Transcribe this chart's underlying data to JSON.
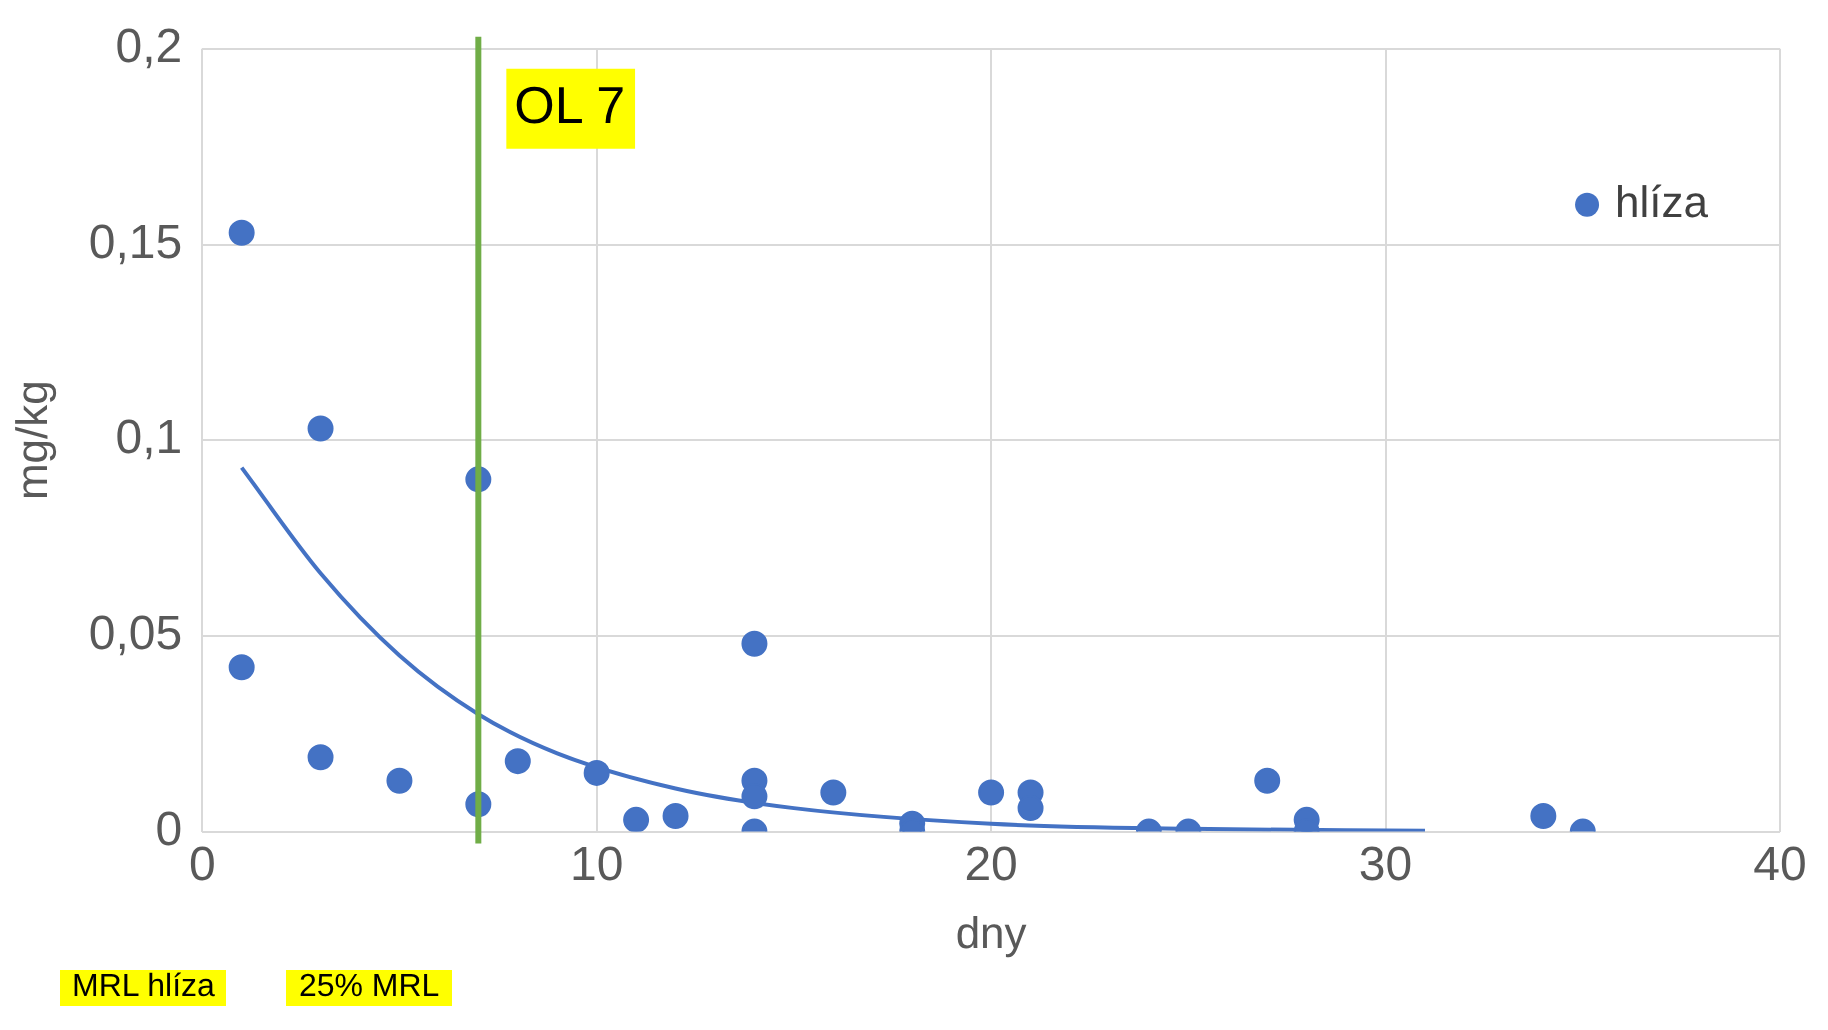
{
  "chart_data": {
    "type": "scatter",
    "xlabel": "dny",
    "ylabel": "mg/kg",
    "xlim": [
      0,
      40
    ],
    "xticks": [
      0,
      10,
      20,
      30,
      40
    ],
    "ylim": [
      0,
      0.2
    ],
    "yticks": [
      0,
      {
        "value": 0.05,
        "label": "0,05"
      },
      {
        "value": 0.1,
        "label": "0,1"
      },
      {
        "value": 0.15,
        "label": "0,15"
      },
      {
        "value": 0.2,
        "label": "0,2"
      }
    ],
    "grid": true,
    "legend": "top right",
    "marker": "circle",
    "series": [
      {
        "name": "hlíza",
        "color": "#4472c4",
        "x": [
          1,
          1,
          3,
          3,
          5,
          7,
          7,
          8,
          10,
          11,
          12,
          14,
          14,
          14,
          14,
          16,
          18,
          18,
          20,
          21,
          21,
          24,
          25,
          27,
          28,
          28,
          34,
          35
        ],
        "values": [
          0.153,
          0.042,
          0.103,
          0.019,
          0.013,
          0.09,
          0.007,
          0.018,
          0.015,
          0.003,
          0.004,
          0.048,
          0.013,
          0.009,
          0,
          0.01,
          0.002,
          0,
          0.01,
          0.01,
          0.006,
          0,
          0,
          0.013,
          0.003,
          0,
          0.004,
          0
        ]
      },
      {
        "type": "line",
        "marker": "none",
        "color": "#4472c4",
        "x": [
          1,
          3,
          5,
          7,
          9,
          12,
          15,
          20,
          25,
          31
        ],
        "values": [
          0.093,
          0.066,
          0.045,
          0.03,
          0.02,
          0.011,
          0.006,
          0.002,
          0.0007,
          0.0002
        ]
      }
    ],
    "ref_lines": [
      {
        "axis": "x",
        "value": 7,
        "label": "OL 7",
        "color": "#70ad47"
      }
    ],
    "annotations": [
      "MRL hlíza",
      "25% MRL"
    ]
  }
}
